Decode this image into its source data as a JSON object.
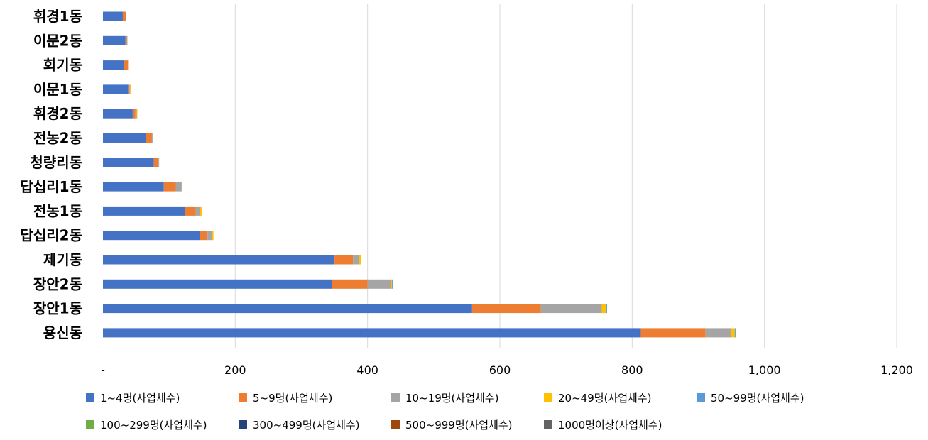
{
  "chart_data": {
    "type": "bar",
    "orientation": "horizontal",
    "stacked": true,
    "categories": [
      "휘경1동",
      "이문2동",
      "회기동",
      "이문1동",
      "휘경2동",
      "전농2동",
      "청량리동",
      "답십리1동",
      "전농1동",
      "답십리2동",
      "제기동",
      "장안2동",
      "장안1동",
      "용신동"
    ],
    "series": [
      {
        "name": "1~4명(사업체수)",
        "color": "#4472C4",
        "values": [
          30,
          34,
          32,
          38,
          45,
          65,
          77,
          92,
          124,
          146,
          350,
          346,
          558,
          813
        ]
      },
      {
        "name": "5~9명(사업체수)",
        "color": "#ED7D31",
        "values": [
          5,
          2,
          6,
          2,
          4,
          9,
          7,
          18,
          16,
          12,
          28,
          54,
          104,
          98
        ]
      },
      {
        "name": "10~19명(사업체수)",
        "color": "#A5A5A5",
        "values": [
          0,
          1,
          0,
          1,
          2,
          1,
          1,
          9,
          7,
          7,
          9,
          35,
          92,
          38
        ]
      },
      {
        "name": "20~49명(사업체수)",
        "color": "#FFC000",
        "values": [
          0,
          0,
          0,
          1,
          1,
          0,
          0,
          1,
          3,
          2,
          3,
          2,
          7,
          6
        ]
      },
      {
        "name": "50~99명(사업체수)",
        "color": "#5B9BD5",
        "values": [
          0,
          0,
          0,
          0,
          0,
          0,
          0,
          0,
          0,
          0,
          0,
          1,
          1,
          1
        ]
      },
      {
        "name": "100~299명(사업체수)",
        "color": "#70AD47",
        "values": [
          0,
          0,
          0,
          0,
          0,
          0,
          0,
          0,
          0,
          0,
          0,
          1,
          0,
          1
        ]
      },
      {
        "name": "300~499명(사업체수)",
        "color": "#264478",
        "values": [
          0,
          0,
          0,
          0,
          0,
          0,
          0,
          0,
          0,
          0,
          0,
          0,
          0,
          0
        ]
      },
      {
        "name": "500~999명(사업체수)",
        "color": "#9E480E",
        "values": [
          0,
          0,
          0,
          0,
          0,
          0,
          0,
          0,
          0,
          0,
          0,
          0,
          0,
          0
        ]
      },
      {
        "name": "1000명이상(사업체수)",
        "color": "#636363",
        "values": [
          0,
          0,
          0,
          0,
          0,
          0,
          0,
          0,
          0,
          0,
          0,
          0,
          0,
          0
        ]
      }
    ],
    "x_ticks": [
      0,
      200,
      400,
      600,
      800,
      1000,
      1200
    ],
    "x_tick_labels": [
      "-",
      "200",
      "400",
      "600",
      "800",
      "1,000",
      "1,200"
    ],
    "xlim": [
      0,
      1200
    ],
    "grid": true,
    "legend_position": "bottom"
  }
}
